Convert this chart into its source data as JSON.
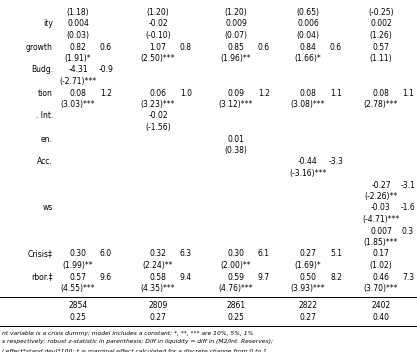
{
  "rows": [
    {
      "label": "",
      "cols": [
        [
          "(1.18)",
          ""
        ],
        [
          "(1.20)",
          ""
        ],
        [
          "(1.20)",
          ""
        ],
        [
          "(0.65)",
          ""
        ],
        [
          "(-0.25)",
          ""
        ]
      ]
    },
    {
      "label": "ity",
      "cols": [
        [
          "0.004",
          ""
        ],
        [
          "-0.02",
          ""
        ],
        [
          "0.009",
          ""
        ],
        [
          "0.006",
          ""
        ],
        [
          "0.002",
          ""
        ]
      ]
    },
    {
      "label": "",
      "cols": [
        [
          "(0.03)",
          ""
        ],
        [
          "(-0.10)",
          ""
        ],
        [
          "(0.07)",
          ""
        ],
        [
          "(0.04)",
          ""
        ],
        [
          "(1.26)",
          ""
        ]
      ]
    },
    {
      "label": "growth",
      "cols": [
        [
          "0.82",
          "0.6"
        ],
        [
          "1.07",
          "0.8"
        ],
        [
          "0.85",
          "0.6"
        ],
        [
          "0.84",
          "0.6"
        ],
        [
          "0.57",
          ""
        ]
      ]
    },
    {
      "label": "",
      "cols": [
        [
          "(1.91)*",
          ""
        ],
        [
          "(2.50)***",
          ""
        ],
        [
          "(1.96)**",
          ""
        ],
        [
          "(1.66)*",
          ""
        ],
        [
          "(1.11)",
          ""
        ]
      ]
    },
    {
      "label": "Budg.",
      "cols": [
        [
          "-4.31",
          "-0.9"
        ],
        [
          "",
          ""
        ],
        [
          "",
          ""
        ],
        [
          "",
          ""
        ],
        [
          "",
          ""
        ]
      ]
    },
    {
      "label": "",
      "cols": [
        [
          "(-2.71)***",
          ""
        ],
        [
          "",
          ""
        ],
        [
          "",
          ""
        ],
        [
          "",
          ""
        ],
        [
          "",
          ""
        ]
      ]
    },
    {
      "label": "tion",
      "cols": [
        [
          "0.08",
          "1.2"
        ],
        [
          "0.06",
          "1.0"
        ],
        [
          "0.09",
          "1.2"
        ],
        [
          "0.08",
          "1.1"
        ],
        [
          "0.08",
          "1.1"
        ]
      ]
    },
    {
      "label": "",
      "cols": [
        [
          "(3.03)***",
          ""
        ],
        [
          "(3.23)***",
          ""
        ],
        [
          "(3.12)***",
          ""
        ],
        [
          "(3.08)***",
          ""
        ],
        [
          "(2.78)***",
          ""
        ]
      ]
    },
    {
      "label": ". Int.",
      "cols": [
        [
          "",
          ""
        ],
        [
          "-0.02",
          ""
        ],
        [
          "",
          ""
        ],
        [
          "",
          ""
        ],
        [
          "",
          ""
        ]
      ]
    },
    {
      "label": "",
      "cols": [
        [
          "",
          ""
        ],
        [
          "(-1.56)",
          ""
        ],
        [
          "",
          ""
        ],
        [
          "",
          ""
        ],
        [
          "",
          ""
        ]
      ]
    },
    {
      "label": "en.",
      "cols": [
        [
          "",
          ""
        ],
        [
          "",
          ""
        ],
        [
          "0.01",
          ""
        ],
        [
          "",
          ""
        ],
        [
          "",
          ""
        ]
      ]
    },
    {
      "label": "",
      "cols": [
        [
          "",
          ""
        ],
        [
          "",
          ""
        ],
        [
          "(0.38)",
          ""
        ],
        [
          "",
          ""
        ],
        [
          "",
          ""
        ]
      ]
    },
    {
      "label": "Acc.",
      "cols": [
        [
          "",
          ""
        ],
        [
          "",
          ""
        ],
        [
          "",
          ""
        ],
        [
          "-0.44",
          "-3.3"
        ],
        [
          "",
          ""
        ]
      ]
    },
    {
      "label": "",
      "cols": [
        [
          "",
          ""
        ],
        [
          "",
          ""
        ],
        [
          "",
          ""
        ],
        [
          "(-3.16)***",
          ""
        ],
        [
          "",
          ""
        ]
      ]
    },
    {
      "label": "",
      "cols": [
        [
          "",
          ""
        ],
        [
          "",
          ""
        ],
        [
          "",
          ""
        ],
        [
          "",
          ""
        ],
        [
          "-0.27",
          "-3.1"
        ]
      ]
    },
    {
      "label": "",
      "cols": [
        [
          "",
          ""
        ],
        [
          "",
          ""
        ],
        [
          "",
          ""
        ],
        [
          "",
          ""
        ],
        [
          "(-2.26)**",
          ""
        ]
      ]
    },
    {
      "label": "ws",
      "cols": [
        [
          "",
          ""
        ],
        [
          "",
          ""
        ],
        [
          "",
          ""
        ],
        [
          "",
          ""
        ],
        [
          "-0.03",
          "-1.6"
        ]
      ]
    },
    {
      "label": "",
      "cols": [
        [
          "",
          ""
        ],
        [
          "",
          ""
        ],
        [
          "",
          ""
        ],
        [
          "",
          ""
        ],
        [
          "(-4.71)***",
          ""
        ]
      ]
    },
    {
      "label": "",
      "cols": [
        [
          "",
          ""
        ],
        [
          "",
          ""
        ],
        [
          "",
          ""
        ],
        [
          "",
          ""
        ],
        [
          "0.007",
          "0.3"
        ]
      ]
    },
    {
      "label": "",
      "cols": [
        [
          "",
          ""
        ],
        [
          "",
          ""
        ],
        [
          "",
          ""
        ],
        [
          "",
          ""
        ],
        [
          "(1.85)***",
          ""
        ]
      ]
    },
    {
      "label": "Crisis‡",
      "cols": [
        [
          "0.30",
          "6.0"
        ],
        [
          "0.32",
          "6.3"
        ],
        [
          "0.30",
          "6.1"
        ],
        [
          "0.27",
          "5.1"
        ],
        [
          "0.17",
          ""
        ]
      ]
    },
    {
      "label": "",
      "cols": [
        [
          "(1.99)**",
          ""
        ],
        [
          "(2.24)**",
          ""
        ],
        [
          "(2.00)**",
          ""
        ],
        [
          "(1.69)*",
          ""
        ],
        [
          "(1.02)",
          ""
        ]
      ]
    },
    {
      "label": "rbor.‡",
      "cols": [
        [
          "0.57",
          "9.6"
        ],
        [
          "0.58",
          "9.4"
        ],
        [
          "0.59",
          "9.7"
        ],
        [
          "0.50",
          "8.2"
        ],
        [
          "0.46",
          "7.3"
        ]
      ]
    },
    {
      "label": "",
      "cols": [
        [
          "(4.55)***",
          ""
        ],
        [
          "(4.35)***",
          ""
        ],
        [
          "(4.76)***",
          ""
        ],
        [
          "(3.93)***",
          ""
        ],
        [
          "(3.70)***",
          ""
        ]
      ]
    }
  ],
  "bottom_rows": [
    [
      "2854",
      "2809",
      "2861",
      "2822",
      "2402"
    ],
    [
      "0.25",
      "0.27",
      "0.25",
      "0.27",
      "0.40"
    ]
  ],
  "footnotes": [
    "nt variable is a crisis dummy; model includes a constant; *, **, *** are 10%, 5%, 1%",
    "s respectively; robust z-statistic in parenthesis; Diff in liquidity = diff in (M2/Int. Reserves);",
    "l effect*stand.dev)*100; ‡ = marginal effect calculated for a discrete change from 0 to 1"
  ]
}
